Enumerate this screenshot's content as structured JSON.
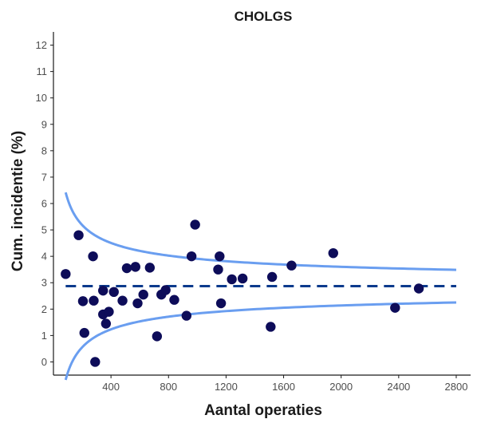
{
  "chart_data": {
    "type": "scatter",
    "title": "CHOLGS",
    "xlabel": "Aantal operaties",
    "ylabel": "Cum. incidentie (%)",
    "xlim": [
      0,
      2900
    ],
    "ylim": [
      -0.5,
      12.5
    ],
    "x_ticks": [
      400,
      800,
      1200,
      1600,
      2000,
      2400,
      2800
    ],
    "y_ticks": [
      0,
      1,
      2,
      3,
      4,
      5,
      6,
      7,
      8,
      9,
      10,
      11,
      12
    ],
    "grid": false,
    "mean_line": {
      "value": 2.87,
      "color": "#0b3a8c",
      "style": "dashed"
    },
    "funnel": {
      "mean": 2.87,
      "z": 1.96,
      "x_start": 85,
      "x_end": 2800,
      "color": "#6a9ef0"
    },
    "points_color": "#0d0c59",
    "points": [
      {
        "x": 85,
        "y": 3.33
      },
      {
        "x": 175,
        "y": 4.8
      },
      {
        "x": 205,
        "y": 2.3
      },
      {
        "x": 215,
        "y": 1.1
      },
      {
        "x": 275,
        "y": 4.0
      },
      {
        "x": 280,
        "y": 2.32
      },
      {
        "x": 290,
        "y": 0.0
      },
      {
        "x": 345,
        "y": 2.7
      },
      {
        "x": 345,
        "y": 1.8
      },
      {
        "x": 365,
        "y": 1.45
      },
      {
        "x": 385,
        "y": 1.9
      },
      {
        "x": 420,
        "y": 2.65
      },
      {
        "x": 480,
        "y": 2.32
      },
      {
        "x": 510,
        "y": 3.55
      },
      {
        "x": 570,
        "y": 3.6
      },
      {
        "x": 585,
        "y": 2.22
      },
      {
        "x": 625,
        "y": 2.55
      },
      {
        "x": 670,
        "y": 3.57
      },
      {
        "x": 720,
        "y": 0.97
      },
      {
        "x": 750,
        "y": 2.55
      },
      {
        "x": 780,
        "y": 2.72
      },
      {
        "x": 840,
        "y": 2.35
      },
      {
        "x": 925,
        "y": 1.75
      },
      {
        "x": 960,
        "y": 4.0
      },
      {
        "x": 985,
        "y": 5.2
      },
      {
        "x": 1145,
        "y": 3.5
      },
      {
        "x": 1155,
        "y": 4.0
      },
      {
        "x": 1165,
        "y": 2.22
      },
      {
        "x": 1240,
        "y": 3.13
      },
      {
        "x": 1315,
        "y": 3.16
      },
      {
        "x": 1510,
        "y": 1.33
      },
      {
        "x": 1520,
        "y": 3.22
      },
      {
        "x": 1655,
        "y": 3.65
      },
      {
        "x": 1945,
        "y": 4.12
      },
      {
        "x": 2375,
        "y": 2.05
      },
      {
        "x": 2540,
        "y": 2.78
      }
    ]
  }
}
